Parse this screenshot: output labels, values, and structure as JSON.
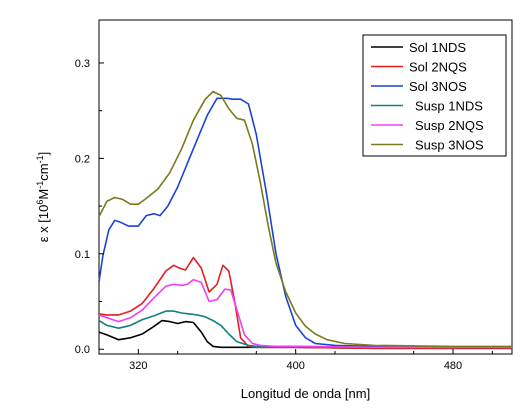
{
  "chart_data": {
    "type": "line",
    "xlabel": "Longitud de onda [nm]",
    "ylabel_parts": {
      "base": "ε x [10",
      "exp1": "6",
      "mid": "M",
      "exp2": "-1",
      "mid2": "cm",
      "exp3": "-1",
      "end": "]"
    },
    "xlim": [
      300,
      510
    ],
    "ylim": [
      -0.005,
      0.345
    ],
    "x_ticks": [
      320,
      400,
      480
    ],
    "x_tick_labels": [
      "320",
      "400",
      "480"
    ],
    "y_ticks": [
      0.0,
      0.1,
      0.2,
      0.3
    ],
    "y_tick_labels": [
      "0.0",
      "0.1",
      "0.2",
      "0.3"
    ],
    "legend_position": "top-right",
    "series": [
      {
        "name": "Sol 1NDS",
        "color": "#000000",
        "x": [
          300,
          304,
          310,
          316,
          322,
          328,
          332,
          336,
          340,
          344,
          348,
          352,
          355,
          358,
          362,
          370,
          380,
          400,
          440,
          480,
          510
        ],
        "y": [
          0.018,
          0.015,
          0.01,
          0.012,
          0.016,
          0.024,
          0.03,
          0.029,
          0.027,
          0.029,
          0.028,
          0.018,
          0.008,
          0.003,
          0.002,
          0.002,
          0.002,
          0.002,
          0.001,
          0.001,
          0.001
        ]
      },
      {
        "name": "Sol 2NQS",
        "color": "#e02020",
        "x": [
          300,
          304,
          310,
          316,
          322,
          328,
          334,
          338,
          341,
          344,
          348,
          352,
          356,
          360,
          363,
          366,
          369,
          372,
          376,
          380,
          390,
          400,
          440,
          480,
          510
        ],
        "y": [
          0.037,
          0.036,
          0.036,
          0.04,
          0.048,
          0.064,
          0.082,
          0.088,
          0.085,
          0.083,
          0.096,
          0.085,
          0.06,
          0.068,
          0.088,
          0.082,
          0.05,
          0.012,
          0.003,
          0.002,
          0.002,
          0.002,
          0.001,
          0.001,
          0.001
        ]
      },
      {
        "name": "Sol 3NOS",
        "color": "#1a44d6",
        "x": [
          300,
          302,
          305,
          308,
          311,
          315,
          320,
          324,
          328,
          331,
          335,
          340,
          345,
          350,
          355,
          360,
          365,
          368,
          372,
          376,
          380,
          385,
          390,
          395,
          400,
          405,
          410,
          420,
          440,
          480,
          510
        ],
        "y": [
          0.071,
          0.098,
          0.125,
          0.135,
          0.133,
          0.129,
          0.129,
          0.14,
          0.142,
          0.14,
          0.15,
          0.17,
          0.195,
          0.22,
          0.245,
          0.263,
          0.263,
          0.262,
          0.262,
          0.257,
          0.225,
          0.165,
          0.1,
          0.055,
          0.025,
          0.012,
          0.006,
          0.004,
          0.003,
          0.002,
          0.002
        ]
      },
      {
        "name": "Susp 1NDS",
        "color": "#108080",
        "x": [
          300,
          304,
          310,
          316,
          322,
          328,
          334,
          338,
          342,
          346,
          350,
          354,
          358,
          362,
          366,
          370,
          376,
          380,
          390,
          400,
          440,
          480,
          510
        ],
        "y": [
          0.03,
          0.025,
          0.022,
          0.025,
          0.031,
          0.035,
          0.04,
          0.04,
          0.038,
          0.037,
          0.036,
          0.034,
          0.03,
          0.025,
          0.016,
          0.008,
          0.004,
          0.003,
          0.003,
          0.003,
          0.002,
          0.002,
          0.002
        ]
      },
      {
        "name": "Susp 2NQS",
        "color": "#f040f0",
        "x": [
          300,
          304,
          310,
          316,
          322,
          328,
          334,
          338,
          342,
          345,
          348,
          352,
          356,
          360,
          364,
          367,
          370,
          374,
          378,
          382,
          390,
          400,
          440,
          480,
          510
        ],
        "y": [
          0.036,
          0.033,
          0.029,
          0.033,
          0.041,
          0.054,
          0.066,
          0.068,
          0.067,
          0.068,
          0.073,
          0.07,
          0.05,
          0.052,
          0.063,
          0.062,
          0.042,
          0.015,
          0.006,
          0.004,
          0.003,
          0.003,
          0.002,
          0.002,
          0.002
        ]
      },
      {
        "name": "Susp 3NOS",
        "color": "#7a7a1e",
        "x": [
          300,
          304,
          308,
          312,
          316,
          320,
          324,
          330,
          336,
          342,
          348,
          354,
          358,
          362,
          366,
          370,
          374,
          378,
          382,
          386,
          390,
          395,
          400,
          405,
          410,
          416,
          425,
          440,
          480,
          510
        ],
        "y": [
          0.139,
          0.155,
          0.159,
          0.157,
          0.152,
          0.152,
          0.158,
          0.168,
          0.185,
          0.21,
          0.24,
          0.262,
          0.27,
          0.266,
          0.252,
          0.242,
          0.24,
          0.215,
          0.175,
          0.13,
          0.09,
          0.06,
          0.038,
          0.024,
          0.016,
          0.01,
          0.006,
          0.004,
          0.003,
          0.003
        ]
      }
    ]
  }
}
